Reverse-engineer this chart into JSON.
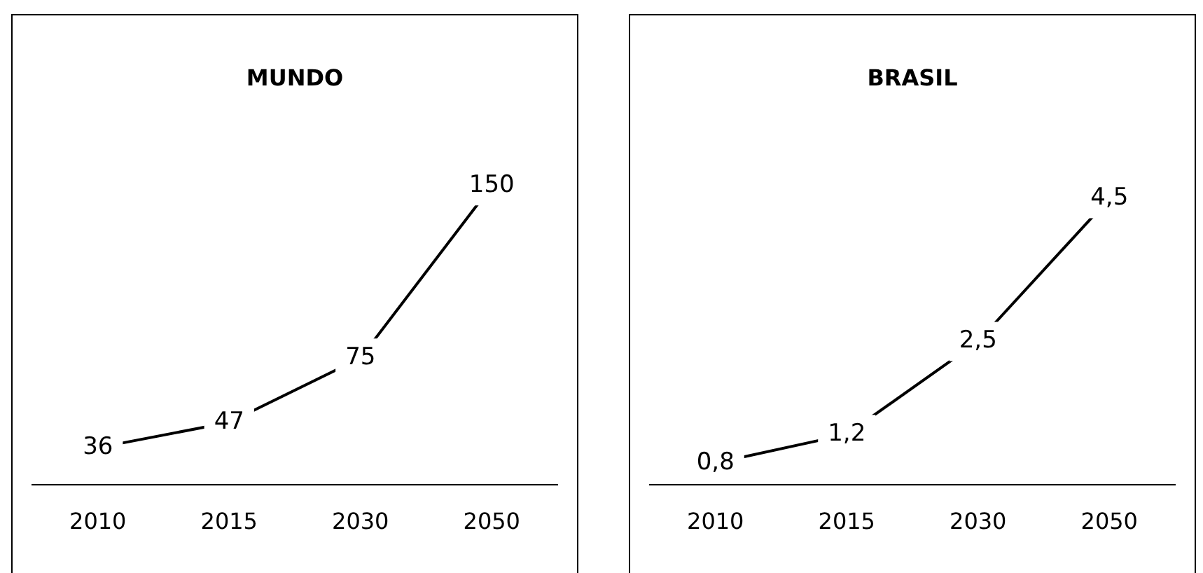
{
  "chart_data": [
    {
      "type": "line",
      "title": "MUNDO",
      "categories": [
        "2010",
        "2015",
        "2030",
        "2050"
      ],
      "values": [
        36,
        47,
        75,
        150
      ],
      "color": "#000000",
      "data_labels": true
    },
    {
      "type": "line",
      "title": "BRASIL",
      "categories": [
        "2010",
        "2015",
        "2030",
        "2050"
      ],
      "values": [
        0.8,
        1.2,
        2.5,
        4.5
      ],
      "value_labels": [
        "0,8",
        "1,2",
        "2,5",
        "4,5"
      ],
      "color": "#000000"
    }
  ]
}
